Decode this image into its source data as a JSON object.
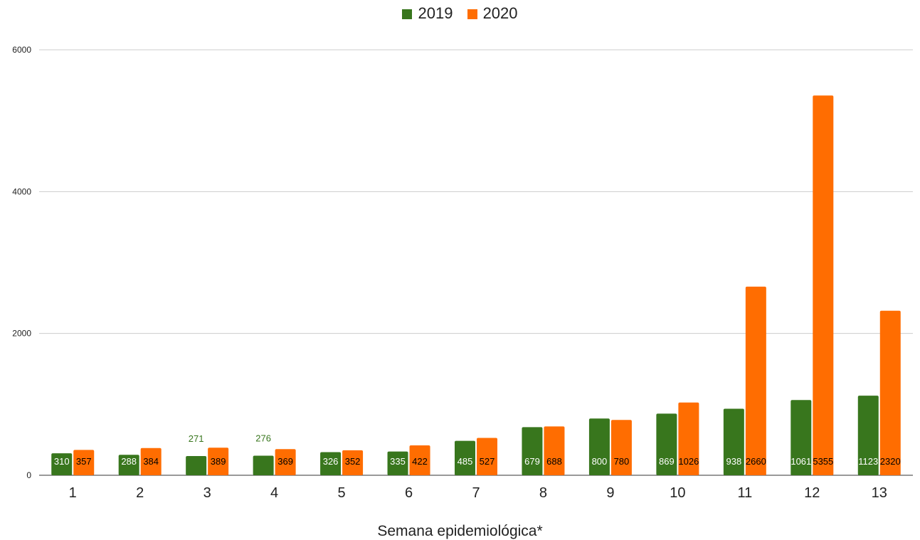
{
  "chart_data": {
    "type": "bar",
    "title": "",
    "xlabel": "Semana epidemiológica*",
    "ylabel": "",
    "categories": [
      "1",
      "2",
      "3",
      "4",
      "5",
      "6",
      "7",
      "8",
      "9",
      "10",
      "11",
      "12",
      "13"
    ],
    "series": [
      {
        "name": "2019",
        "color": "#38761d",
        "values": [
          310,
          288,
          271,
          276,
          326,
          335,
          485,
          679,
          800,
          869,
          938,
          1061,
          1123
        ]
      },
      {
        "name": "2020",
        "color": "#ff6d01",
        "values": [
          357,
          384,
          389,
          369,
          352,
          422,
          527,
          688,
          780,
          1026,
          2660,
          5355,
          2320
        ]
      }
    ],
    "ylim": [
      0,
      6000
    ],
    "yticks": [
      0,
      2000,
      4000,
      6000
    ],
    "grid": true,
    "legend": "top-center"
  }
}
